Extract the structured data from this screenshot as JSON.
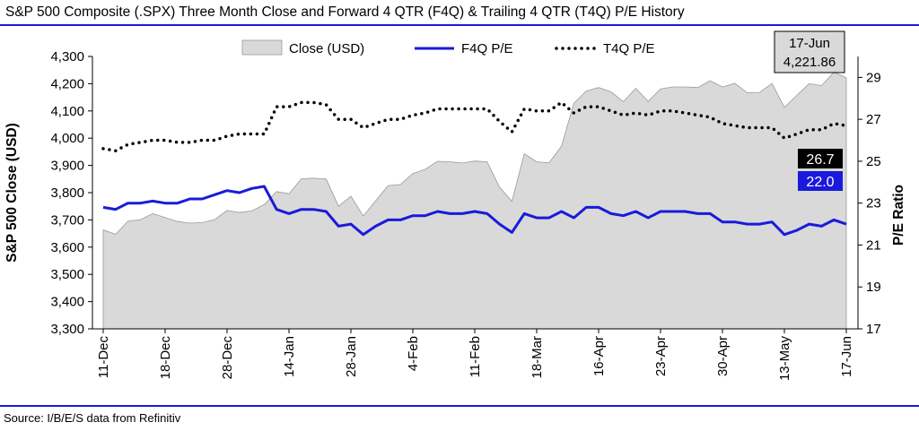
{
  "title": "S&P 500 Composite (.SPX) Three Month Close and Forward 4 QTR (F4Q) & Trailing 4 QTR (T4Q) P/E History",
  "source": "Source: I/B/E/S data from Refinitiv",
  "colors": {
    "rule": "#1a1adb",
    "close_fill": "#d9d9d9",
    "f4q_line": "#1a1adb",
    "t4q_line": "#000000",
    "callout_bg": "#d9d9d9"
  },
  "callout": {
    "date": "17-Jun",
    "value": "4,221.86"
  },
  "badges": {
    "t4q": "26.7",
    "f4q": "22.0"
  },
  "chart_data": {
    "type": "line",
    "title": "S&P 500 Composite (.SPX) Three Month Close and Forward 4 QTR (F4Q) & Trailing 4 QTR (T4Q) P/E History",
    "ylabel": "S&P 500 Close (USD)",
    "y2label": "P/E Ratio",
    "ylim": [
      3300,
      4300
    ],
    "y2lim": [
      17,
      30
    ],
    "yticks": [
      "3,300",
      "3,400",
      "3,500",
      "3,600",
      "3,700",
      "3,800",
      "3,900",
      "4,000",
      "4,100",
      "4,200",
      "4,300"
    ],
    "y2ticks": [
      "17",
      "19",
      "21",
      "23",
      "25",
      "27",
      "29"
    ],
    "xticks": [
      "11-Dec",
      "18-Dec",
      "28-Dec",
      "14-Jan",
      "28-Jan",
      "4-Feb",
      "11-Feb",
      "18-Mar",
      "16-Apr",
      "23-Apr",
      "30-Apr",
      "13-May",
      "17-Jun"
    ],
    "legend": "top",
    "series": [
      {
        "name": "Close (USD)",
        "kind": "area",
        "values": [
          3663,
          3647,
          3695,
          3701,
          3723,
          3709,
          3694,
          3688,
          3690,
          3701,
          3735,
          3727,
          3733,
          3756,
          3804,
          3796,
          3851,
          3853,
          3850,
          3750,
          3787,
          3714,
          3770,
          3826,
          3830,
          3870,
          3886,
          3915,
          3913,
          3909,
          3916,
          3913,
          3820,
          3768,
          3943,
          3913,
          3910,
          3970,
          4128,
          4173,
          4186,
          4170,
          4134,
          4183,
          4135,
          4181,
          4188,
          4188,
          4186,
          4211,
          4188,
          4201,
          4167,
          4168,
          4201,
          4113,
          4157,
          4200,
          4193,
          4242,
          4222
        ]
      },
      {
        "name": "F4Q P/E",
        "kind": "line",
        "values": [
          22.8,
          22.7,
          23.0,
          23.0,
          23.1,
          23.0,
          23.0,
          23.2,
          23.2,
          23.4,
          23.6,
          23.5,
          23.7,
          23.8,
          22.7,
          22.5,
          22.7,
          22.7,
          22.6,
          21.9,
          22.0,
          21.5,
          21.9,
          22.2,
          22.2,
          22.4,
          22.4,
          22.6,
          22.5,
          22.5,
          22.6,
          22.5,
          22.0,
          21.6,
          22.5,
          22.3,
          22.3,
          22.6,
          22.3,
          22.8,
          22.8,
          22.5,
          22.4,
          22.6,
          22.3,
          22.6,
          22.6,
          22.6,
          22.5,
          22.5,
          22.1,
          22.1,
          22.0,
          22.0,
          22.1,
          21.5,
          21.7,
          22.0,
          21.9,
          22.2,
          22.0
        ]
      },
      {
        "name": "T4Q P/E",
        "kind": "dotted",
        "values": [
          25.6,
          25.5,
          25.8,
          25.9,
          26.0,
          26.0,
          25.9,
          25.9,
          26.0,
          26.0,
          26.2,
          26.3,
          26.3,
          26.3,
          27.6,
          27.6,
          27.8,
          27.8,
          27.7,
          27.0,
          27.0,
          26.6,
          26.8,
          27.0,
          27.0,
          27.2,
          27.3,
          27.5,
          27.5,
          27.5,
          27.5,
          27.5,
          26.9,
          26.4,
          27.5,
          27.4,
          27.4,
          27.8,
          27.3,
          27.6,
          27.6,
          27.4,
          27.2,
          27.3,
          27.2,
          27.4,
          27.4,
          27.3,
          27.2,
          27.1,
          26.8,
          26.7,
          26.6,
          26.6,
          26.6,
          26.1,
          26.3,
          26.5,
          26.5,
          26.8,
          26.7
        ]
      }
    ]
  }
}
